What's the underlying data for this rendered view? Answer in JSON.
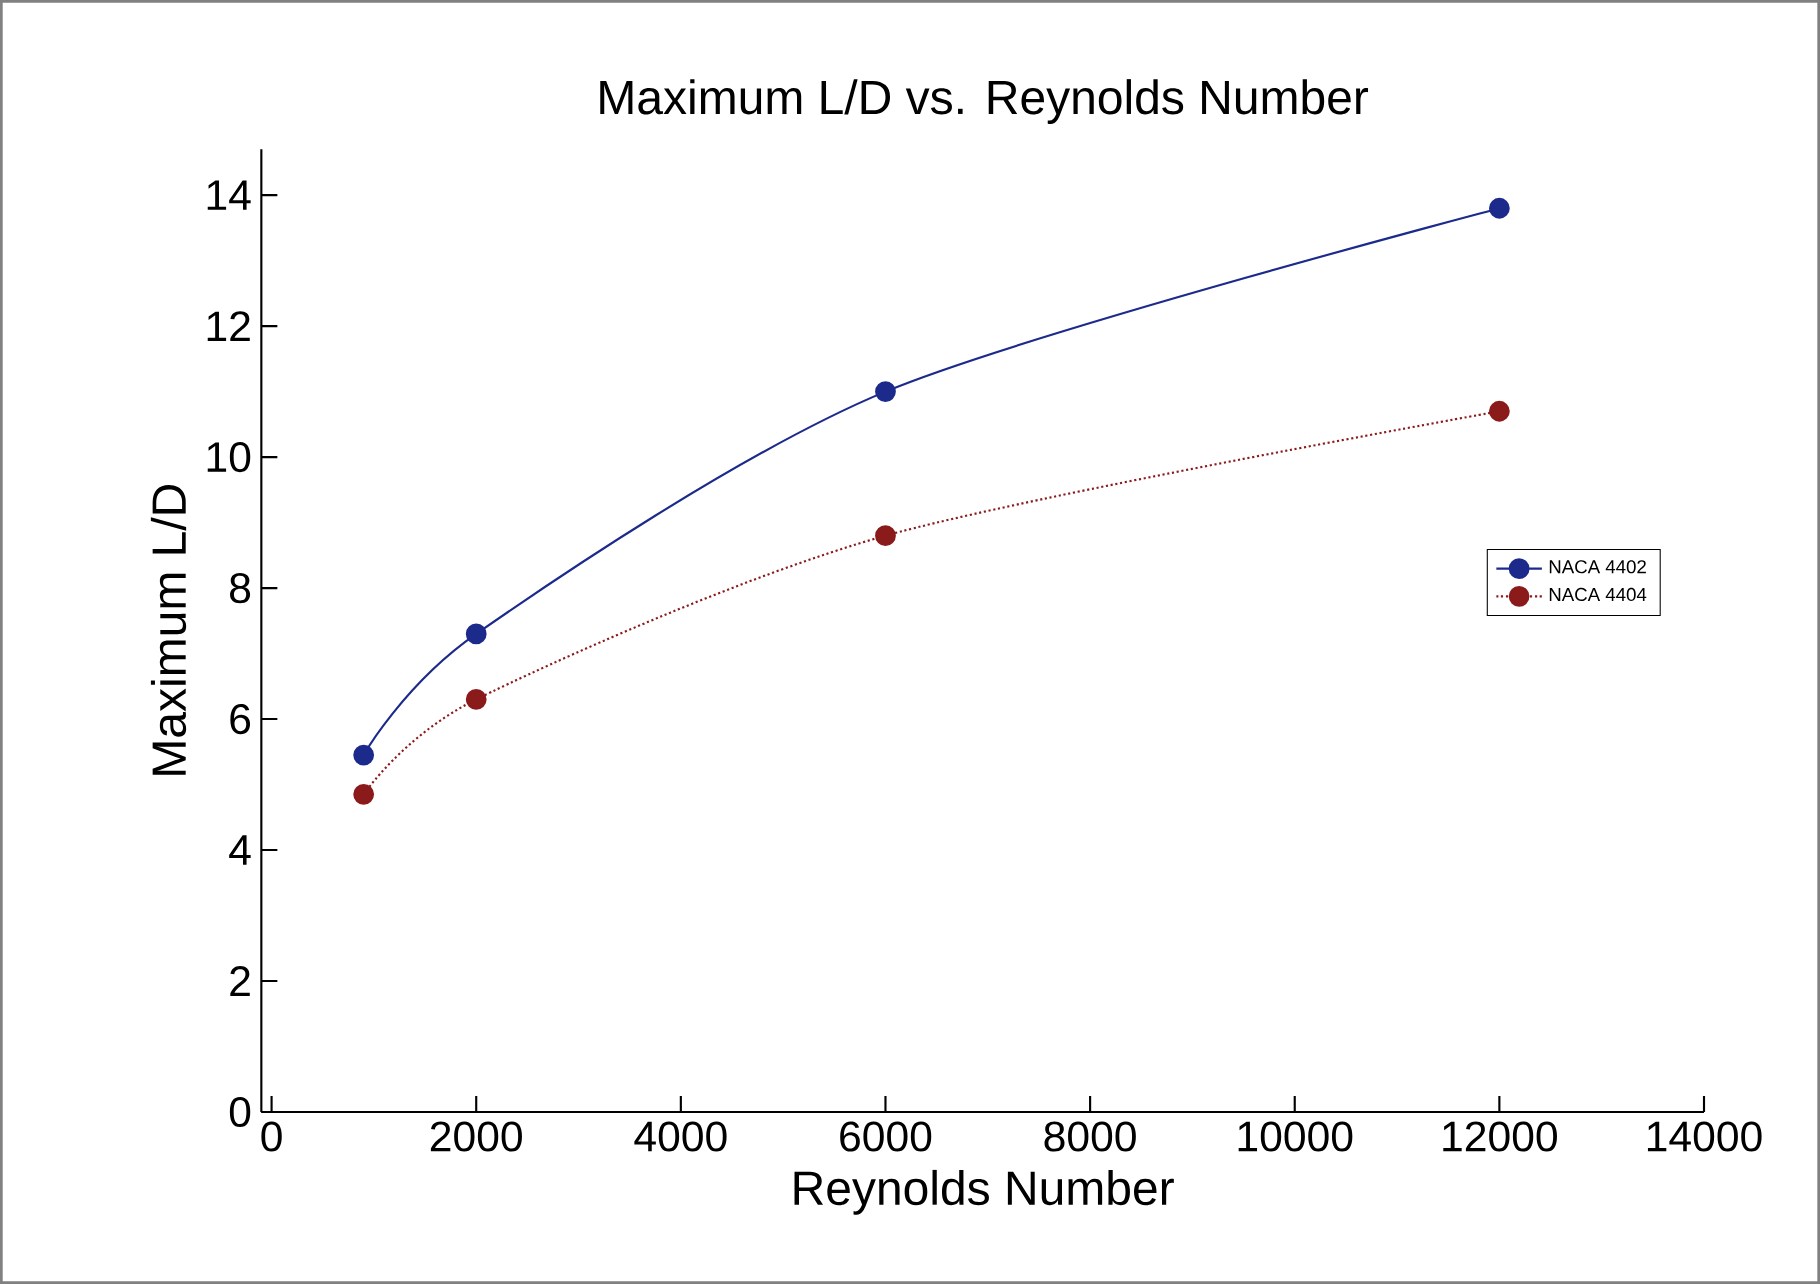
{
  "chart_data": {
    "type": "line",
    "title": "Maximum L/D vs. Reynolds Number",
    "xlabel": "Reynolds Number",
    "ylabel": "Maximum L/D",
    "x": [
      900,
      2000,
      6000,
      12000
    ],
    "series": [
      {
        "name": "NACA 4402",
        "color": "#1c2a8c",
        "values": [
          5.45,
          7.3,
          11.0,
          13.8
        ],
        "line_style": "solid"
      },
      {
        "name": "NACA 4404",
        "color": "#8b1a1a",
        "values": [
          4.85,
          6.3,
          8.8,
          10.7
        ],
        "line_style": "dotted"
      }
    ],
    "xlim": [
      -100,
      14000
    ],
    "ylim": [
      0,
      14.7
    ],
    "xticks": [
      0,
      2000,
      4000,
      6000,
      8000,
      10000,
      12000,
      14000
    ],
    "yticks": [
      0,
      2,
      4,
      6,
      8,
      10,
      12,
      14
    ],
    "marker": "circle",
    "legend": "right",
    "grid": false
  }
}
